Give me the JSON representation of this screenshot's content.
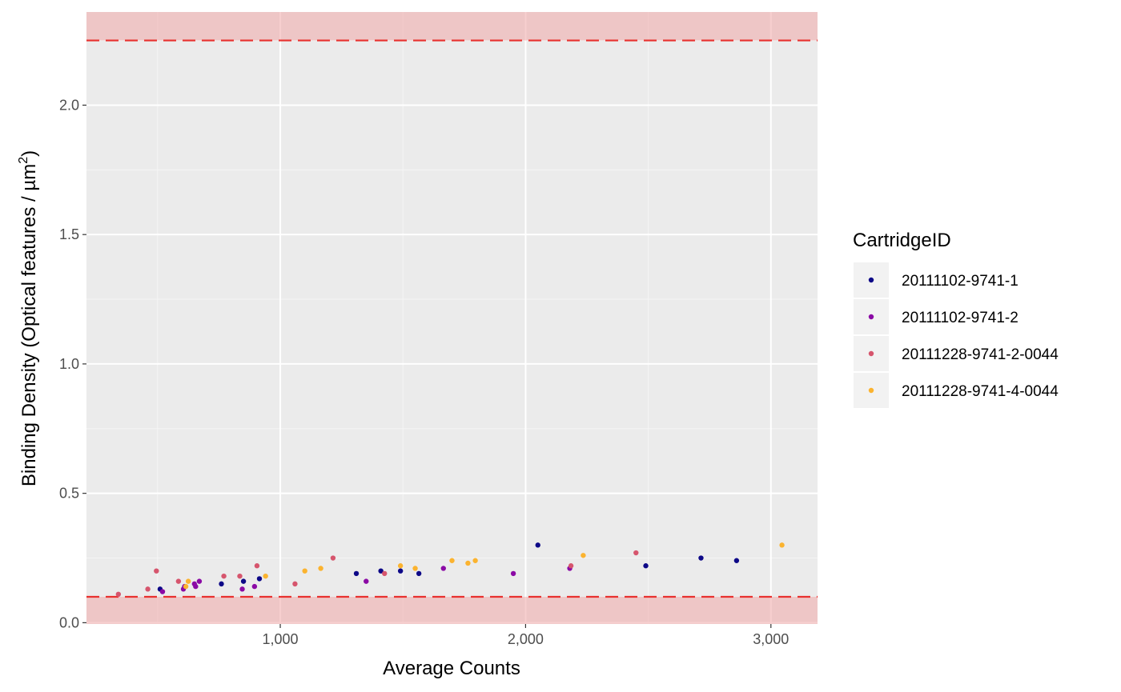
{
  "chart_data": {
    "type": "scatter",
    "xlabel": "Average Counts",
    "ylabel_main": "Binding Density (Optical features / µm",
    "ylabel_sup": "2",
    "ylabel_close": ")",
    "xlim": [
      210,
      3190
    ],
    "ylim": [
      -0.005,
      2.36
    ],
    "x_ticks": [
      1000,
      2000,
      3000
    ],
    "x_tick_labels": [
      "1,000",
      "2,000",
      "3,000"
    ],
    "y_ticks": [
      0.0,
      0.5,
      1.0,
      1.5,
      2.0
    ],
    "y_tick_labels": [
      "0.0",
      "0.5",
      "1.0",
      "1.5",
      "2.0"
    ],
    "grid": true,
    "background_color": "#ebebeb",
    "thresholds": {
      "lower": 0.1,
      "upper": 2.25,
      "line_color": "#e8312f",
      "band_color": "#f0a8a8"
    },
    "legend": {
      "title": "CartridgeID",
      "position": "right"
    },
    "series": [
      {
        "name": "20111102-9741-1",
        "color": "#0d0887",
        "points": [
          [
            510,
            0.13
          ],
          [
            760,
            0.15
          ],
          [
            850,
            0.16
          ],
          [
            915,
            0.17
          ],
          [
            1310,
            0.19
          ],
          [
            1410,
            0.2
          ],
          [
            1490,
            0.2
          ],
          [
            1565,
            0.19
          ],
          [
            2050,
            0.3
          ],
          [
            2490,
            0.22
          ],
          [
            2715,
            0.25
          ],
          [
            2860,
            0.24
          ]
        ]
      },
      {
        "name": "20111102-9741-2",
        "color": "#8b0aa5",
        "points": [
          [
            520,
            0.12
          ],
          [
            605,
            0.13
          ],
          [
            610,
            0.14
          ],
          [
            650,
            0.15
          ],
          [
            655,
            0.14
          ],
          [
            670,
            0.16
          ],
          [
            845,
            0.13
          ],
          [
            895,
            0.14
          ],
          [
            1350,
            0.16
          ],
          [
            1665,
            0.21
          ],
          [
            1950,
            0.19
          ],
          [
            2180,
            0.21
          ]
        ]
      },
      {
        "name": "20111228-9741-2-0044",
        "color": "#d6556d",
        "points": [
          [
            340,
            0.11
          ],
          [
            460,
            0.13
          ],
          [
            495,
            0.2
          ],
          [
            585,
            0.16
          ],
          [
            770,
            0.18
          ],
          [
            835,
            0.18
          ],
          [
            905,
            0.22
          ],
          [
            1060,
            0.15
          ],
          [
            1215,
            0.25
          ],
          [
            1425,
            0.19
          ],
          [
            2185,
            0.22
          ],
          [
            2450,
            0.27
          ]
        ]
      },
      {
        "name": "20111228-9741-4-0044",
        "color": "#fbb32f",
        "points": [
          [
            615,
            0.14
          ],
          [
            625,
            0.16
          ],
          [
            940,
            0.18
          ],
          [
            1100,
            0.2
          ],
          [
            1165,
            0.21
          ],
          [
            1490,
            0.22
          ],
          [
            1550,
            0.21
          ],
          [
            1700,
            0.24
          ],
          [
            1765,
            0.23
          ],
          [
            1795,
            0.24
          ],
          [
            2235,
            0.26
          ],
          [
            3045,
            0.3
          ]
        ]
      }
    ]
  }
}
